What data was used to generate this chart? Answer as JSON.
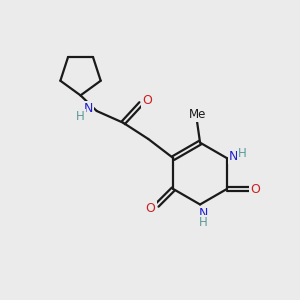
{
  "background_color": "#ebebeb",
  "bond_color": "#1a1a1a",
  "N_color": "#2020cc",
  "O_color": "#cc2020",
  "H_color": "#5a9a9a",
  "figsize": [
    3.0,
    3.0
  ],
  "dpi": 100,
  "xlim": [
    0,
    10
  ],
  "ylim": [
    0,
    10
  ]
}
